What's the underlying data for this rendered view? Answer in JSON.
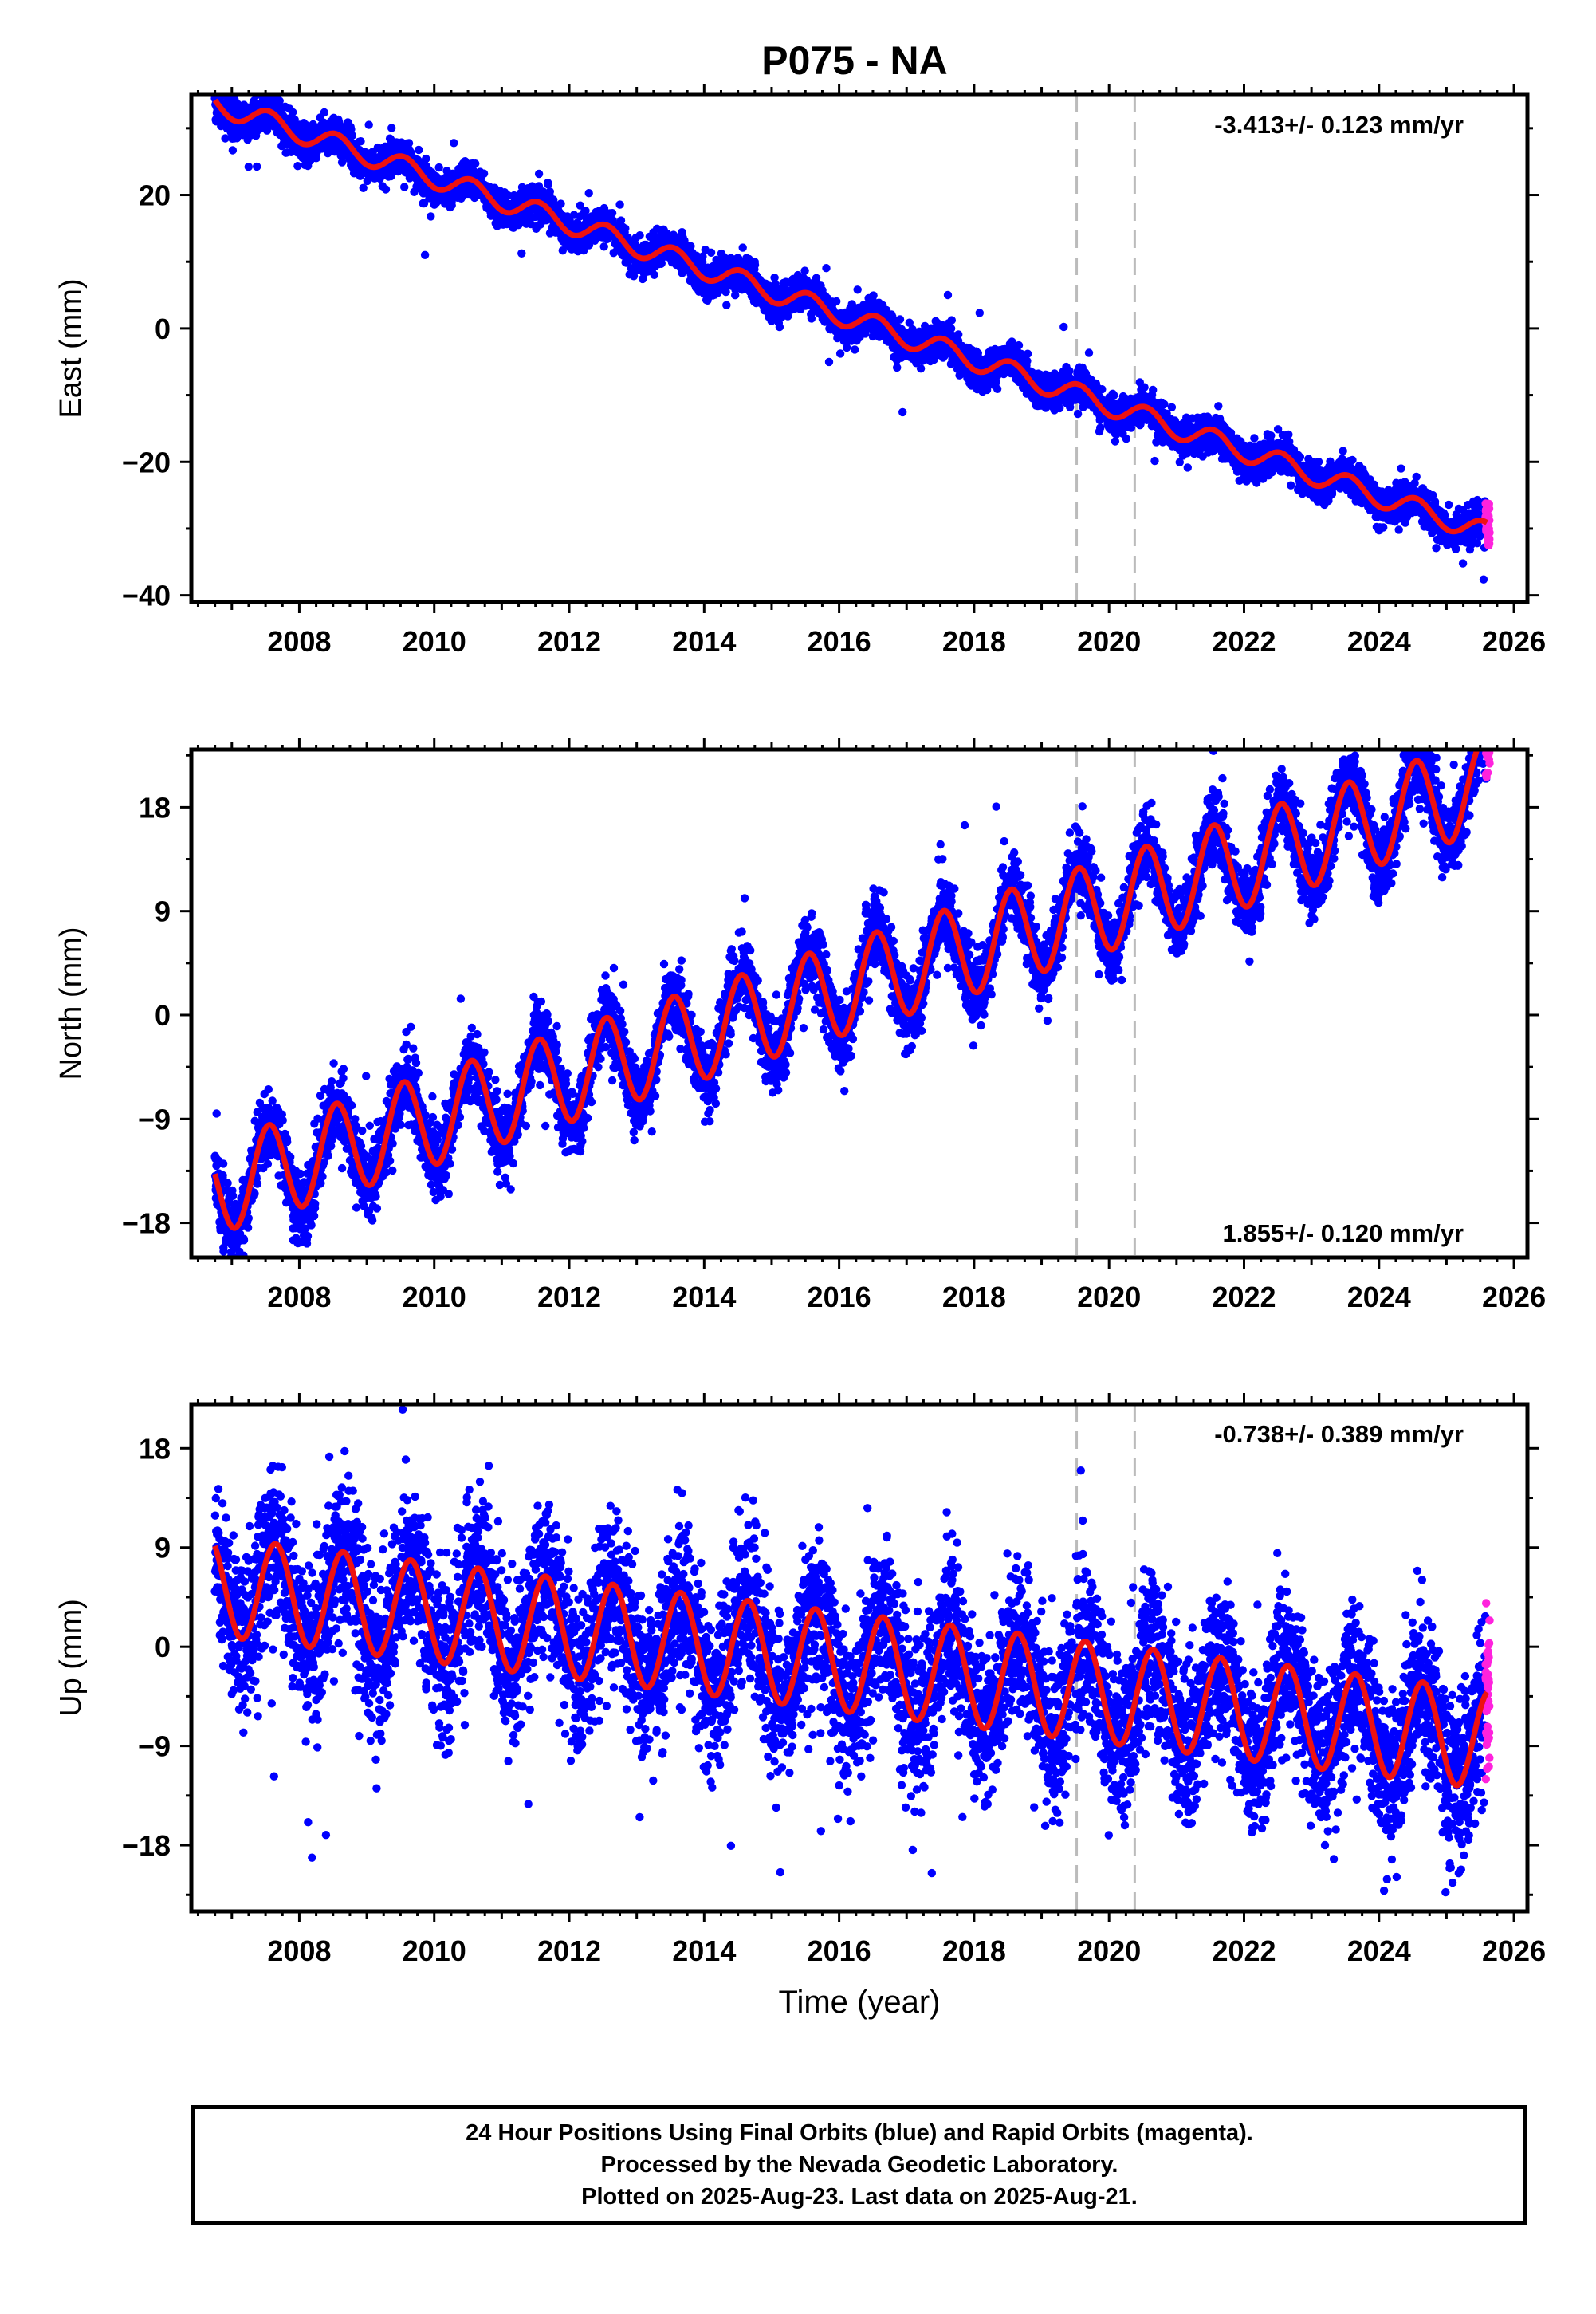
{
  "title": "P075 - NA",
  "chart_data": [
    {
      "type": "scatter",
      "panel": "east",
      "ylabel": "East (mm)",
      "xlabel": "",
      "rate_label": "-3.413+/- 0.123 mm/yr",
      "rate_position": "top-right",
      "xlim": [
        2006.4,
        2026.2
      ],
      "ylim": [
        -41,
        35
      ],
      "xticks": [
        2008,
        2010,
        2012,
        2014,
        2016,
        2018,
        2020,
        2022,
        2024,
        2026
      ],
      "yticks": [
        -40,
        -20,
        0,
        20
      ],
      "ytick_labels": [
        "−40",
        "−20",
        "0",
        "20"
      ],
      "vlines": [
        2019.52,
        2020.38
      ],
      "model": {
        "start": 2006.75,
        "end": 2025.6,
        "offset_at_start": 33.7,
        "rate": -3.413,
        "seasonal_amp": 1.6,
        "peak_phase": 0.55,
        "noise": 1.3
      },
      "series": [
        {
          "name": "Final Orbits",
          "color": "#0000ff"
        },
        {
          "name": "Rapid Orbits",
          "color": "#ff22dd"
        },
        {
          "name": "Model",
          "color": "#ee1111"
        }
      ]
    },
    {
      "type": "scatter",
      "panel": "north",
      "ylabel": "North (mm)",
      "xlabel": "",
      "rate_label": "1.855+/- 0.120 mm/yr",
      "rate_position": "bottom-right",
      "xlim": [
        2006.4,
        2026.2
      ],
      "ylim": [
        -21,
        23
      ],
      "xticks": [
        2008,
        2010,
        2012,
        2014,
        2016,
        2018,
        2020,
        2022,
        2024,
        2026
      ],
      "yticks": [
        -18,
        -9,
        0,
        9,
        18
      ],
      "ytick_labels": [
        "−18",
        "−9",
        "0",
        "9",
        "18"
      ],
      "vlines": [
        2019.52,
        2020.38
      ],
      "model": {
        "start": 2006.75,
        "end": 2025.6,
        "offset_at_start": -15.0,
        "rate": 1.855,
        "seasonal_amp": 4.0,
        "peak_phase": 0.55,
        "noise": 1.5
      },
      "series": [
        {
          "name": "Final Orbits",
          "color": "#0000ff"
        },
        {
          "name": "Rapid Orbits",
          "color": "#ff22dd"
        },
        {
          "name": "Model",
          "color": "#ee1111"
        }
      ]
    },
    {
      "type": "scatter",
      "panel": "up",
      "ylabel": "Up (mm)",
      "xlabel": "Time (year)",
      "rate_label": "-0.738+/- 0.389 mm/yr",
      "rate_position": "top-right",
      "xlim": [
        2006.4,
        2026.2
      ],
      "ylim": [
        -24,
        22
      ],
      "xticks": [
        2008,
        2010,
        2012,
        2014,
        2016,
        2018,
        2020,
        2022,
        2024,
        2026
      ],
      "yticks": [
        -18,
        -9,
        0,
        9,
        18
      ],
      "ytick_labels": [
        "−18",
        "−9",
        "0",
        "9",
        "18"
      ],
      "vlines": [
        2019.52,
        2020.38
      ],
      "model": {
        "start": 2006.75,
        "end": 2025.6,
        "offset_at_start": 5.5,
        "rate": -0.738,
        "seasonal_amp": 4.5,
        "peak_phase": 0.65,
        "noise": 3.6
      },
      "series": [
        {
          "name": "Final Orbits",
          "color": "#0000ff"
        },
        {
          "name": "Rapid Orbits",
          "color": "#ff22dd"
        },
        {
          "name": "Model",
          "color": "#ee1111"
        }
      ]
    }
  ],
  "caption": [
    "24 Hour Positions Using Final Orbits (blue) and Rapid Orbits (magenta).",
    "Processed by the Nevada Geodetic Laboratory.",
    "Plotted on 2025-Aug-23. Last data on 2025-Aug-21."
  ]
}
